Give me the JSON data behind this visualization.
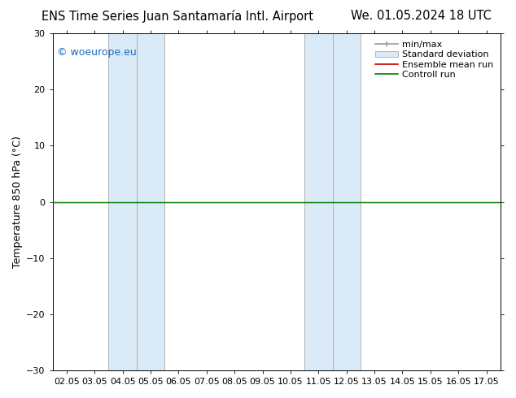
{
  "title_left": "ENS Time Series Juan Santamaría Intl. Airport",
  "title_right": "We. 01.05.2024 18 UTC",
  "ylabel": "Temperature 850 hPa (°C)",
  "ylim": [
    -30,
    30
  ],
  "yticks": [
    -30,
    -20,
    -10,
    0,
    10,
    20,
    30
  ],
  "xtick_labels": [
    "02.05",
    "03.05",
    "04.05",
    "05.05",
    "06.05",
    "07.05",
    "08.05",
    "09.05",
    "10.05",
    "11.05",
    "12.05",
    "13.05",
    "14.05",
    "15.05",
    "16.05",
    "17.05"
  ],
  "shaded_regions": [
    {
      "xmin": 2,
      "xmax": 4,
      "color": "#daeaf6"
    },
    {
      "xmin": 9,
      "xmax": 11,
      "color": "#daeaf6"
    }
  ],
  "vertical_lines_at": [
    2,
    3,
    4,
    9,
    10,
    11
  ],
  "zero_line_y": 0,
  "green_line_y": 0,
  "green_line_color": "#008000",
  "red_line_color": "#cc0000",
  "watermark": "© woeurope.eu",
  "watermark_color": "#1a6bc0",
  "background_color": "#ffffff",
  "plot_bg_color": "#ffffff",
  "legend_entries": [
    "min/max",
    "Standard deviation",
    "Ensemble mean run",
    "Controll run"
  ],
  "legend_colors_line": [
    "#999999",
    "#c5d8e8",
    "#cc0000",
    "#008000"
  ],
  "title_fontsize": 10.5,
  "axis_label_fontsize": 9,
  "tick_fontsize": 8,
  "watermark_fontsize": 9,
  "legend_fontsize": 8
}
